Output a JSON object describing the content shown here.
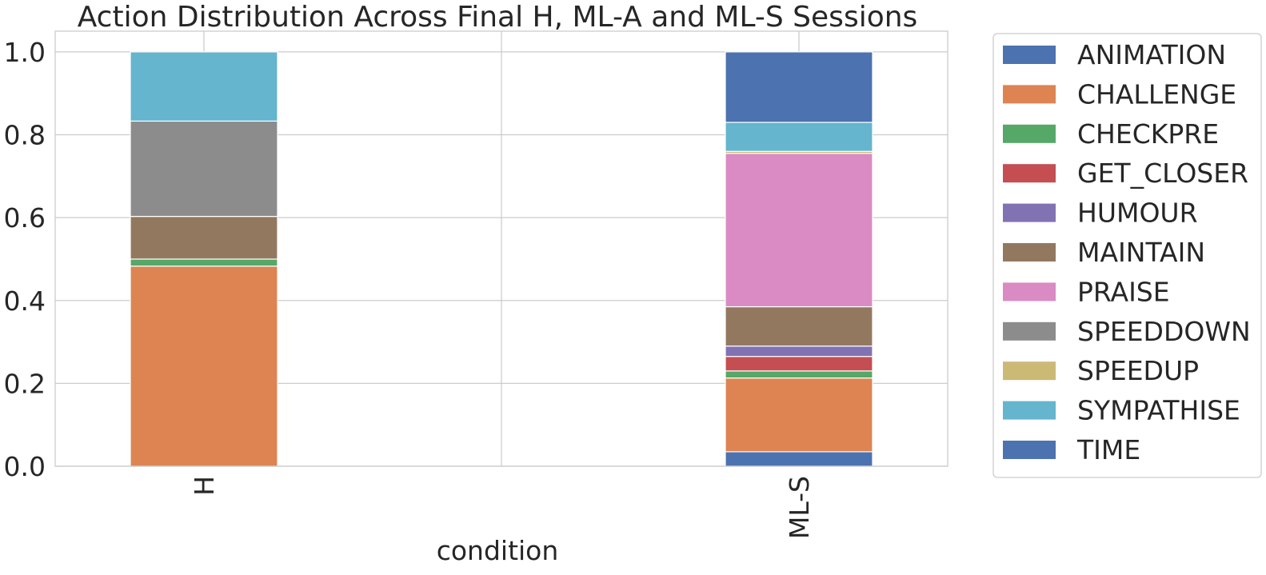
{
  "chart_data": {
    "type": "bar",
    "stacked": true,
    "title": "Action Distribution Across Final H, ML-A and ML-S Sessions",
    "xlabel": "condition",
    "ylabel": "",
    "ylim": [
      0,
      1.05
    ],
    "yticks": [
      "0.0",
      "0.2",
      "0.4",
      "0.6",
      "0.8",
      "1.0"
    ],
    "categories": [
      "H",
      "",
      "ML-S"
    ],
    "grid": true,
    "legend_position": "outside-right",
    "series": [
      {
        "name": "TIME",
        "color": "#4c72b0",
        "values": [
          0.0,
          null,
          0.035
        ]
      },
      {
        "name": "CHALLENGE",
        "color": "#dd8452",
        "values": [
          0.483,
          null,
          0.178
        ]
      },
      {
        "name": "CHECKPRE",
        "color": "#55a868",
        "values": [
          0.017,
          null,
          0.017
        ]
      },
      {
        "name": "GET_CLOSER",
        "color": "#c44e52",
        "values": [
          0.0,
          null,
          0.035
        ]
      },
      {
        "name": "HUMOUR",
        "color": "#8172b3",
        "values": [
          0.0,
          null,
          0.025
        ]
      },
      {
        "name": "MAINTAIN",
        "color": "#937860",
        "values": [
          0.103,
          null,
          0.095
        ]
      },
      {
        "name": "PRAISE",
        "color": "#da8bc3",
        "values": [
          0.0,
          null,
          0.37
        ]
      },
      {
        "name": "SPEEDDOWN",
        "color": "#8c8c8c",
        "values": [
          0.23,
          null,
          0.0
        ]
      },
      {
        "name": "SPEEDUP",
        "color": "#ccb974",
        "values": [
          0.0,
          null,
          0.005
        ]
      },
      {
        "name": "SYMPATHISE",
        "color": "#64b5cd",
        "values": [
          0.167,
          null,
          0.07
        ]
      },
      {
        "name": "ANIMATION",
        "color": "#4c72b0",
        "values": [
          0.0,
          null,
          0.17
        ]
      }
    ],
    "legend": [
      "ANIMATION",
      "CHALLENGE",
      "CHECKPRE",
      "GET_CLOSER",
      "HUMOUR",
      "MAINTAIN",
      "PRAISE",
      "SPEEDDOWN",
      "SPEEDUP",
      "SYMPATHISE",
      "TIME"
    ],
    "legend_colors": [
      "#4c72b0",
      "#dd8452",
      "#55a868",
      "#c44e52",
      "#8172b3",
      "#937860",
      "#da8bc3",
      "#8c8c8c",
      "#ccb974",
      "#64b5cd",
      "#4c72b0"
    ]
  }
}
